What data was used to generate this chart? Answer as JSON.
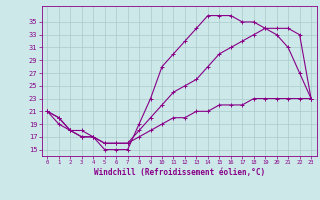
{
  "background_color": "#cce8e8",
  "line_color": "#880088",
  "grid_color": "#aacccc",
  "xlim": [
    -0.5,
    23.5
  ],
  "ylim": [
    14,
    37.5
  ],
  "xticks": [
    0,
    1,
    2,
    3,
    4,
    5,
    6,
    7,
    8,
    9,
    10,
    11,
    12,
    13,
    14,
    15,
    16,
    17,
    18,
    19,
    20,
    21,
    22,
    23
  ],
  "yticks": [
    15,
    17,
    19,
    21,
    23,
    25,
    27,
    29,
    31,
    33,
    35
  ],
  "xlabel": "Windchill (Refroidissement éolien,°C)",
  "line1_x": [
    0,
    1,
    2,
    3,
    4,
    5,
    6,
    7,
    8,
    9,
    10,
    11,
    12,
    13,
    14,
    15,
    16,
    17,
    18,
    19,
    20,
    21,
    22,
    23
  ],
  "line1_y": [
    21,
    19,
    18,
    17,
    17,
    15,
    15,
    15,
    19,
    23,
    28,
    30,
    32,
    34,
    36,
    36,
    36,
    35,
    35,
    34,
    33,
    31,
    27,
    23
  ],
  "line2_x": [
    0,
    1,
    2,
    3,
    4,
    5,
    6,
    7,
    8,
    9,
    10,
    11,
    12,
    13,
    14,
    15,
    16,
    17,
    18,
    19,
    20,
    21,
    22,
    23
  ],
  "line2_y": [
    21,
    20,
    18,
    18,
    17,
    16,
    16,
    16,
    18,
    20,
    22,
    24,
    25,
    26,
    28,
    30,
    31,
    32,
    33,
    34,
    34,
    34,
    33,
    23
  ],
  "line3_x": [
    0,
    1,
    2,
    3,
    4,
    5,
    6,
    7,
    8,
    9,
    10,
    11,
    12,
    13,
    14,
    15,
    16,
    17,
    18,
    19,
    20,
    21,
    22,
    23
  ],
  "line3_y": [
    21,
    20,
    18,
    17,
    17,
    16,
    16,
    16,
    17,
    18,
    19,
    20,
    20,
    21,
    21,
    22,
    22,
    22,
    23,
    23,
    23,
    23,
    23,
    23
  ]
}
